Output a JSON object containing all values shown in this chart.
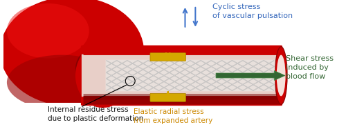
{
  "background_color": "#ffffff",
  "vessel_red_bright": "#ee1111",
  "vessel_red": "#cc0000",
  "vessel_red_dark": "#990000",
  "vessel_red_darker": "#770000",
  "vessel_red_light": "#ff4444",
  "vessel_inner_pink": "#f0c0b8",
  "vessel_lumen": "#e8cfc8",
  "vessel_lumen_light": "#f5e0da",
  "stent_color": "#e0e0e0",
  "stent_shadow": "#999999",
  "stent_bg": "#ddd0cc",
  "gold_color": "#d4a800",
  "gold_dark": "#aa8000",
  "arrow_blue": "#4477cc",
  "arrow_green": "#336633",
  "arrow_green_bright": "#448844",
  "text_blue": "#3366bb",
  "text_green": "#336633",
  "text_black": "#111111",
  "text_gold": "#cc8800",
  "cyclic_text": "Cyclic stress\nof vascular pulsation",
  "shear_text": "Shear stress\nInduced by\nblood flow",
  "internal_text": "Internal residue stress\ndue to plastic deformation",
  "elastic_text": "Elastic radial stress\nfrom expanded artery",
  "fontsize_main": 8.0,
  "fontsize_small": 7.5
}
